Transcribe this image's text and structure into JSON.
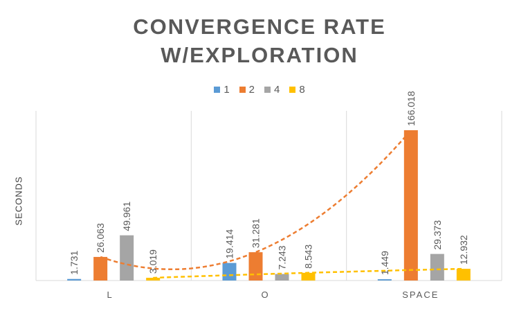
{
  "chart_data": {
    "type": "bar",
    "title": "CONVERGENCE RATE W/EXPLORATION",
    "title_lines": [
      "CONVERGENCE RATE",
      "W/EXPLORATION"
    ],
    "ylabel": "SECONDS",
    "xlabel": "",
    "categories": [
      "L",
      "O",
      "SPACE"
    ],
    "series": [
      {
        "name": "1",
        "color": "#5B9BD5",
        "values": [
          1.731,
          19.414,
          1.449
        ],
        "labels": [
          "1.731",
          "19.414",
          "1.449"
        ]
      },
      {
        "name": "2",
        "color": "#ED7D31",
        "values": [
          26.063,
          31.281,
          166.018
        ],
        "labels": [
          "26.063",
          "31.281",
          "166.018"
        ]
      },
      {
        "name": "4",
        "color": "#A5A5A5",
        "values": [
          49.961,
          7.243,
          29.373
        ],
        "labels": [
          "49.961",
          "7.243",
          "29.373"
        ]
      },
      {
        "name": "8",
        "color": "#FFC000",
        "values": [
          3.019,
          8.543,
          12.932
        ],
        "labels": [
          "3.019",
          "8.543",
          "12.932"
        ]
      }
    ],
    "trendlines": [
      {
        "series": "2",
        "type": "polynomial",
        "style": "dashed",
        "color": "#ED7D31"
      },
      {
        "series": "8",
        "type": "polynomial",
        "style": "dashed",
        "color": "#FFC000"
      }
    ],
    "ylim": [
      0,
      166.018
    ],
    "y_axis_visible": false,
    "grid": "vertical category separators",
    "legend_position": "top"
  }
}
